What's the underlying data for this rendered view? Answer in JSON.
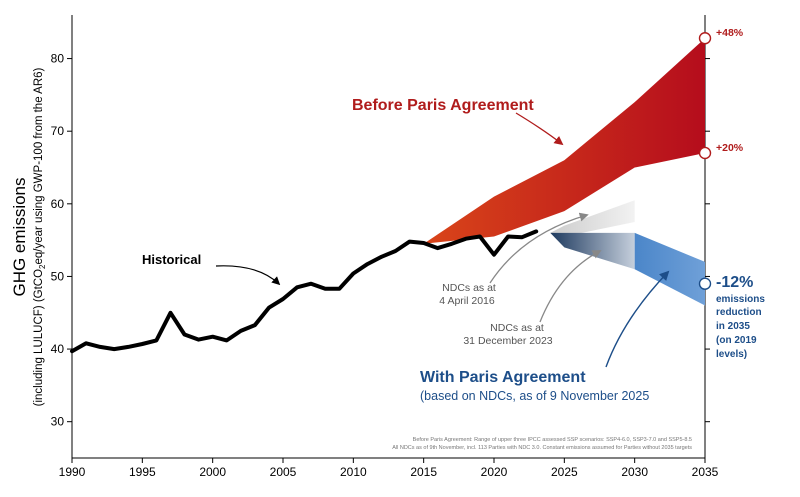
{
  "chart_data": {
    "type": "line",
    "ylabel_main": "GHG emissions",
    "ylabel_sub_prefix": "(including LULUCF) (GtCO",
    "ylabel_sub_subscript": "2",
    "ylabel_sub_suffix": "eq/year using GWP-100 from the AR6)",
    "xlim": [
      1990,
      2035
    ],
    "ylim": [
      25,
      86
    ],
    "x_ticks": [
      1990,
      1995,
      2000,
      2005,
      2010,
      2015,
      2020,
      2025,
      2030,
      2035
    ],
    "y_ticks": [
      30,
      40,
      50,
      60,
      70,
      80
    ],
    "series": [
      {
        "name": "Historical",
        "x": [
          1990,
          1991,
          1992,
          1993,
          1994,
          1995,
          1996,
          1997,
          1998,
          1999,
          2000,
          2001,
          2002,
          2003,
          2004,
          2005,
          2006,
          2007,
          2008,
          2009,
          2010,
          2011,
          2012,
          2013,
          2014,
          2015,
          2016,
          2017,
          2018,
          2019,
          2020,
          2021,
          2022,
          2023
        ],
        "y": [
          39.7,
          40.8,
          40.3,
          40.0,
          40.3,
          40.7,
          41.2,
          45.0,
          42.0,
          41.3,
          41.7,
          41.2,
          42.5,
          43.3,
          45.7,
          46.9,
          48.5,
          49.0,
          48.3,
          48.3,
          50.4,
          51.7,
          52.7,
          53.5,
          54.8,
          54.6,
          53.9,
          54.5,
          55.2,
          55.5,
          53.0,
          55.5,
          55.4,
          56.2
        ]
      },
      {
        "name": "Before Paris Agreement",
        "x": [
          2015,
          2020,
          2025,
          2030,
          2035
        ],
        "y_upper": [
          54.5,
          61.0,
          66.0,
          74.0,
          82.8
        ],
        "y_lower": [
          54.5,
          55.5,
          59.0,
          65.0,
          67.0
        ]
      },
      {
        "name": "NDCs as at 4 April 2016",
        "x": [
          2024,
          2025,
          2030
        ],
        "y_upper": [
          56.0,
          57.0,
          60.5
        ],
        "y_lower": [
          56.0,
          55.5,
          57.5
        ]
      },
      {
        "name": "NDCs as at 31 December 2023",
        "x": [
          2024,
          2025,
          2030
        ],
        "y_upper": [
          56.0,
          56.0,
          56.0
        ],
        "y_lower": [
          56.0,
          54.0,
          51.0
        ]
      },
      {
        "name": "With Paris Agreement",
        "x": [
          2030,
          2035
        ],
        "y_upper": [
          56.0,
          52.0
        ],
        "y_lower": [
          51.0,
          46.0
        ]
      }
    ],
    "markers": [
      {
        "x": 2035,
        "y": 82.8,
        "label": "+48%"
      },
      {
        "x": 2035,
        "y": 67.0,
        "label": "+20%"
      },
      {
        "x": 2035,
        "y": 49.0,
        "label": "-12%"
      }
    ]
  },
  "annotations": {
    "historical": "Historical",
    "before_paris": "Before Paris Agreement",
    "ndc_2016_line1": "NDCs as at",
    "ndc_2016_line2": "4 April 2016",
    "ndc_2023_line1": "NDCs as at",
    "ndc_2023_line2": "31 December 2023",
    "with_paris": "With Paris Agreement",
    "with_paris_sub": "(based on NDCs, as of 9 November 2025",
    "pct_plus48": "+48%",
    "pct_plus20": "+20%",
    "pct_minus12": "-12%",
    "reduction_line1": "emissions",
    "reduction_line2": "reduction",
    "reduction_line3": "in 2035",
    "reduction_line4": "(on 2019",
    "reduction_line5": "levels)",
    "footnote_line1": "Before Paris Agreement: Range of upper three IPCC assessed SSP scenarios: SSP4-6.0, SSP3-7.0 and SSP5-8.5",
    "footnote_line2": "All NDCs as of 9th November, incl. 113 Parties with NDC 3.0. Constant emissions assumed for Parties without 2035 targets"
  },
  "colors": {
    "historical": "#000000",
    "before_paris_start": "#d9451a",
    "before_paris_end": "#b50d1c",
    "with_paris_start": "#6a98cf",
    "with_paris_end": "#3d7cc6",
    "ndc_2023_start": "#1e3a5f",
    "ndc_2023_end": "#c5cfdc",
    "ndc_2016": "#e2e2e2",
    "red_text": "#b01c1c",
    "blue_text": "#1d4e89"
  }
}
